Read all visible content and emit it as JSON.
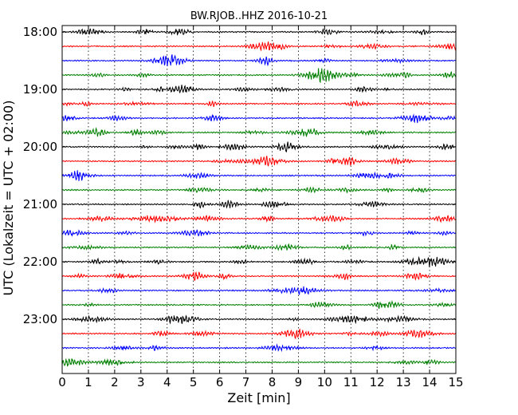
{
  "chart_data": {
    "type": "line",
    "title": "BW.RJOB..HHZ 2016-10-21",
    "xlabel": "Zeit  [min]",
    "ylabel": "UTC (Lokalzeit = UTC + 02:00)",
    "xlim": [
      0,
      15
    ],
    "x_ticks": [
      "0",
      "1",
      "2",
      "3",
      "4",
      "5",
      "6",
      "7",
      "8",
      "9",
      "10",
      "11",
      "12",
      "13",
      "14",
      "15"
    ],
    "x_grid": true,
    "y_grid": false,
    "row_duration_min": 15,
    "row_colors": [
      "#000000",
      "#ff0000",
      "#0000ff",
      "#008000"
    ],
    "y_tick_labels": [
      "18:00",
      "19:00",
      "20:00",
      "21:00",
      "22:00",
      "23:00"
    ],
    "rows": [
      {
        "start": "18:00"
      },
      {
        "start": "18:15"
      },
      {
        "start": "18:30"
      },
      {
        "start": "18:45"
      },
      {
        "start": "19:00"
      },
      {
        "start": "19:15"
      },
      {
        "start": "19:30"
      },
      {
        "start": "19:45"
      },
      {
        "start": "20:00"
      },
      {
        "start": "20:15"
      },
      {
        "start": "20:30"
      },
      {
        "start": "20:45"
      },
      {
        "start": "21:00"
      },
      {
        "start": "21:15"
      },
      {
        "start": "21:30"
      },
      {
        "start": "21:45"
      },
      {
        "start": "22:00"
      },
      {
        "start": "22:15"
      },
      {
        "start": "22:30"
      },
      {
        "start": "22:45"
      },
      {
        "start": "23:00"
      },
      {
        "start": "23:15"
      },
      {
        "start": "23:30"
      },
      {
        "start": "23:45"
      }
    ]
  }
}
